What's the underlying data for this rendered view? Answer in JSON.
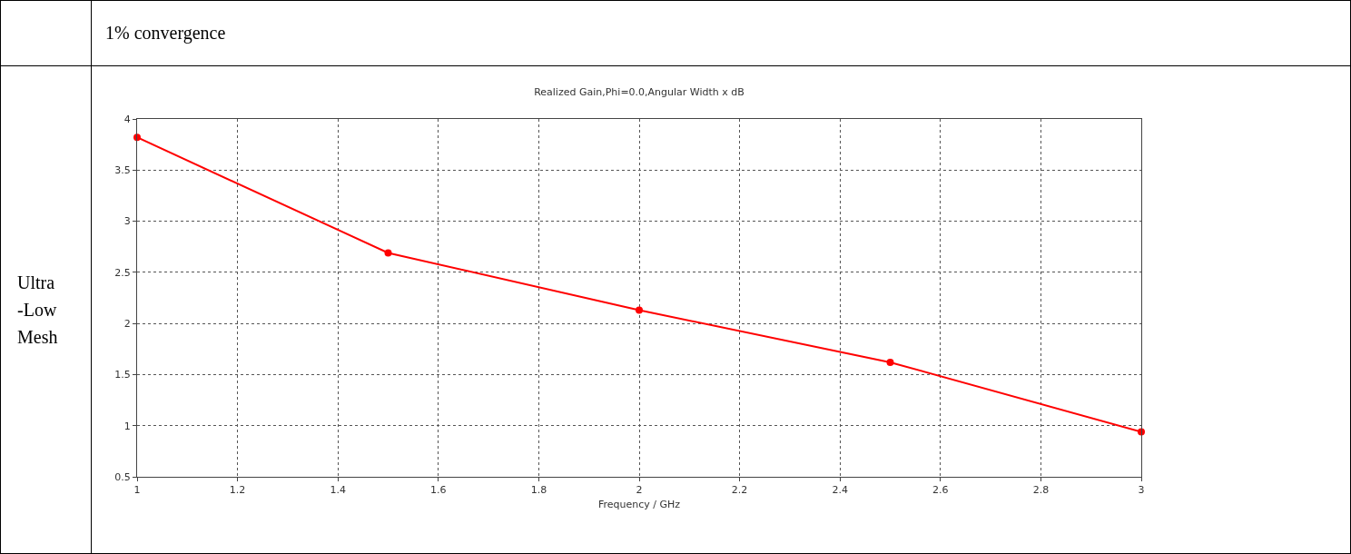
{
  "chart_data": {
    "type": "line",
    "title": "Realized Gain,Phi=0.0,Angular Width x dB",
    "xlabel": "Frequency / GHz",
    "annotations": [
      "1% convergence",
      "Ultra -Low Mesh"
    ],
    "x": [
      1,
      1.5,
      2,
      2.5,
      3
    ],
    "series": [
      {
        "color": "#ff0000",
        "values": [
          3.82,
          2.69,
          2.13,
          1.62,
          0.94
        ]
      }
    ],
    "xlim": [
      1,
      3
    ],
    "xticks": [
      1,
      1.2,
      1.4,
      1.6,
      1.8,
      2,
      2.2,
      2.4,
      2.6,
      2.8,
      3
    ],
    "ylim": [
      0.5,
      4
    ],
    "yticks": [
      0.5,
      1,
      1.5,
      2,
      2.5,
      3,
      3.5,
      4
    ],
    "grid": true,
    "marker": "circle",
    "line_style": "solid"
  }
}
